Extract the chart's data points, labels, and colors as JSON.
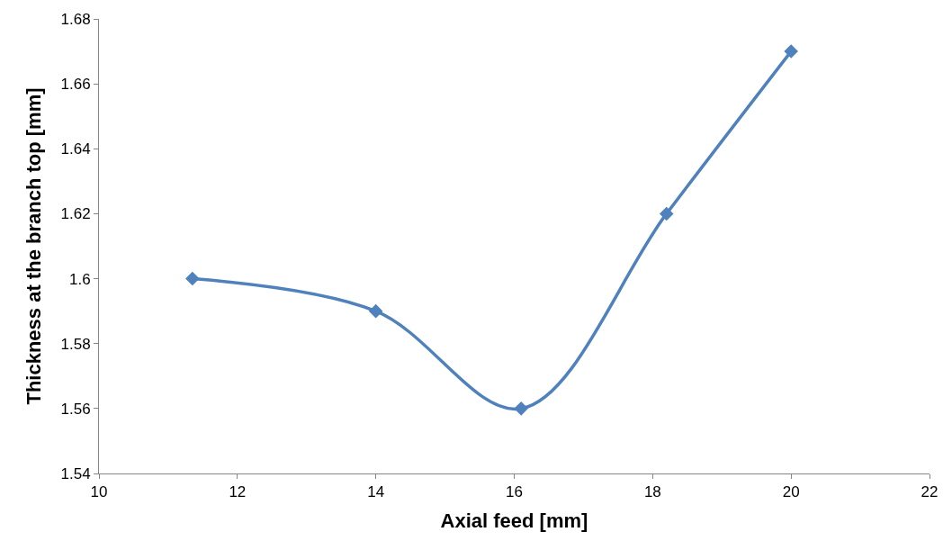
{
  "chart_data": {
    "type": "line",
    "xlabel": "Axial feed [mm]",
    "ylabel": "Thickness at the branch top [mm]",
    "x": [
      11.35,
      14.0,
      16.1,
      18.2,
      20.0
    ],
    "series": [
      {
        "color": "#4f81bd",
        "values": [
          1.6,
          1.59,
          1.56,
          1.62,
          1.67
        ]
      }
    ],
    "xlim": [
      10,
      22
    ],
    "xticks": [
      10,
      12,
      14,
      16,
      18,
      20,
      22
    ],
    "ylim": [
      1.54,
      1.68
    ],
    "yticks": [
      {
        "value": 1.54,
        "label": "1.54"
      },
      {
        "value": 1.56,
        "label": "1.56"
      },
      {
        "value": 1.58,
        "label": "1.58"
      },
      {
        "value": 1.6,
        "label": "1.6"
      },
      {
        "value": 1.62,
        "label": "1.62"
      },
      {
        "value": 1.64,
        "label": "1.64"
      },
      {
        "value": 1.66,
        "label": "1.66"
      },
      {
        "value": 1.68,
        "label": "1.68"
      }
    ],
    "marker": "diamond",
    "line_style": "solid"
  }
}
